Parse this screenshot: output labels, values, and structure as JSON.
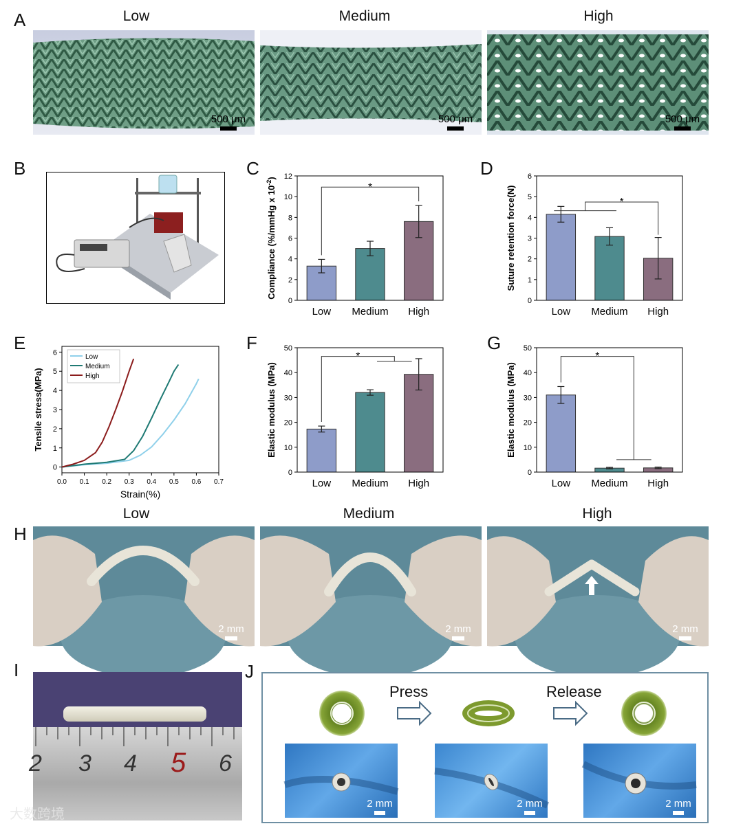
{
  "panels": {
    "A": {
      "label": "A",
      "titles": [
        "Low",
        "Medium",
        "High"
      ],
      "scale": "500 μm"
    },
    "B": {
      "label": "B"
    },
    "C": {
      "label": "C"
    },
    "D": {
      "label": "D"
    },
    "E": {
      "label": "E"
    },
    "F": {
      "label": "F"
    },
    "G": {
      "label": "G"
    },
    "H": {
      "label": "H",
      "titles": [
        "Low",
        "Medium",
        "High"
      ],
      "scale": "2 mm"
    },
    "I": {
      "label": "I",
      "ruler": [
        "2",
        "3",
        "4",
        "5",
        "6"
      ]
    },
    "J": {
      "label": "J",
      "press": "Press",
      "release": "Release",
      "scale": "2 mm"
    }
  },
  "watermark": "大数跨境",
  "colors": {
    "low": "#8e9cc9",
    "medium": "#4e8b8e",
    "high": "#8a6d7f",
    "lowLine": "#8fd0ea",
    "medLine": "#1f7a74",
    "highLine": "#8b1c1c",
    "ring": "#7d9a2e"
  },
  "chart_data": [
    {
      "id": "C",
      "type": "bar",
      "categories": [
        "Low",
        "Medium",
        "High"
      ],
      "values": [
        3.3,
        5.0,
        7.6
      ],
      "errors": [
        0.65,
        0.7,
        1.55
      ],
      "ylabel": "Compliance (%/mmHg x 10",
      "ylabel_sup": "-2",
      "ylabel_end": ")",
      "ylim": [
        0,
        12
      ],
      "yticks": [
        0,
        2,
        4,
        6,
        8,
        10,
        12
      ],
      "sig": "*"
    },
    {
      "id": "D",
      "type": "bar",
      "categories": [
        "Low",
        "Medium",
        "High"
      ],
      "values": [
        4.15,
        3.08,
        2.03
      ],
      "errors": [
        0.38,
        0.42,
        1.0
      ],
      "ylabel": "Suture retention force(N)",
      "ylim": [
        0,
        6
      ],
      "yticks": [
        0,
        1,
        2,
        3,
        4,
        5,
        6
      ],
      "sig": "*"
    },
    {
      "id": "E",
      "type": "line",
      "xlabel": "Strain(%)",
      "ylabel": "Tensile stress(MPa)",
      "xlim": [
        0,
        0.7
      ],
      "ylim": [
        -0.3,
        6.3
      ],
      "xticks": [
        "0.0",
        "0.1",
        "0.2",
        "0.3",
        "0.4",
        "0.5",
        "0.6",
        "0.7"
      ],
      "yticks": [
        0,
        1,
        2,
        3,
        4,
        5,
        6
      ],
      "series": [
        {
          "name": "Low",
          "x": [
            0,
            0.1,
            0.2,
            0.3,
            0.35,
            0.4,
            0.45,
            0.5,
            0.55,
            0.6,
            0.61
          ],
          "y": [
            0,
            0.12,
            0.2,
            0.35,
            0.62,
            1.05,
            1.7,
            2.45,
            3.3,
            4.35,
            4.6
          ]
        },
        {
          "name": "Medium",
          "x": [
            0,
            0.1,
            0.2,
            0.28,
            0.32,
            0.36,
            0.4,
            0.44,
            0.48,
            0.5,
            0.52
          ],
          "y": [
            0,
            0.15,
            0.25,
            0.4,
            0.85,
            1.6,
            2.55,
            3.55,
            4.5,
            5.0,
            5.35
          ]
        },
        {
          "name": "High",
          "x": [
            0,
            0.05,
            0.1,
            0.15,
            0.18,
            0.21,
            0.24,
            0.27,
            0.3,
            0.32
          ],
          "y": [
            0,
            0.15,
            0.35,
            0.75,
            1.3,
            2.1,
            3.0,
            3.95,
            5.0,
            5.65
          ]
        }
      ]
    },
    {
      "id": "F",
      "type": "bar",
      "categories": [
        "Low",
        "Medium",
        "High"
      ],
      "values": [
        17.3,
        32.0,
        39.3
      ],
      "errors": [
        1.2,
        1.1,
        6.3
      ],
      "ylabel": "Elastic modulus (MPa)",
      "ylim": [
        0,
        50
      ],
      "yticks": [
        0,
        10,
        20,
        30,
        40,
        50
      ],
      "sig": "*"
    },
    {
      "id": "G",
      "type": "bar",
      "categories": [
        "Low",
        "Medium",
        "High"
      ],
      "values": [
        31.0,
        1.6,
        1.7
      ],
      "errors": [
        3.4,
        0.3,
        0.3
      ],
      "ylabel": "Elastic modulus (MPa)",
      "ylim": [
        0,
        50
      ],
      "yticks": [
        0,
        10,
        20,
        30,
        40,
        50
      ],
      "sig": "*"
    }
  ]
}
